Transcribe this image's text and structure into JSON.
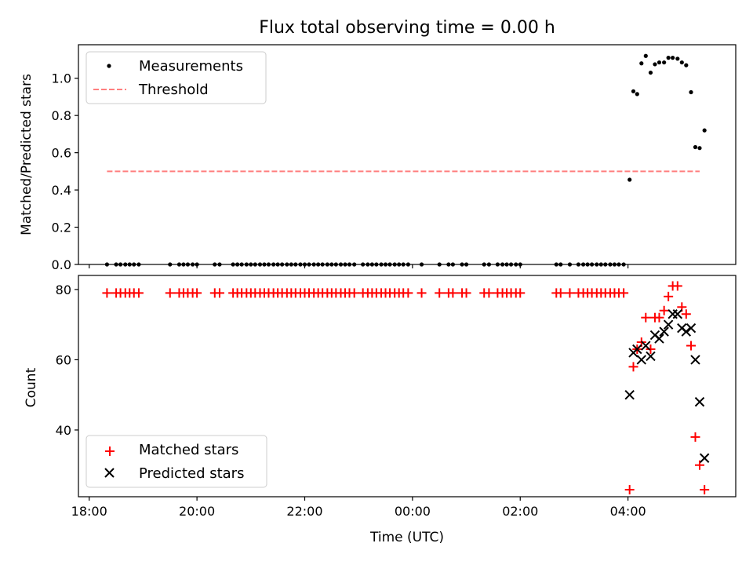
{
  "chart_data": [
    {
      "type": "scatter",
      "title": "Flux total observing time = 0.00 h",
      "ylabel": "Matched/Predicted stars",
      "xlabel": "",
      "xlim": [
        -0.2,
        12.0
      ],
      "ylim": [
        0.0,
        1.18
      ],
      "yticks": [
        0.0,
        0.2,
        0.4,
        0.6,
        0.8,
        1.0
      ],
      "ytick_labels": [
        "0.0",
        "0.2",
        "0.4",
        "0.6",
        "0.8",
        "1.0"
      ],
      "legend": "top-left",
      "series": [
        {
          "name": "Measurements",
          "color": "#000000",
          "marker": "dot",
          "x": [
            0.33,
            0.5,
            0.58,
            0.67,
            0.75,
            0.83,
            0.92,
            1.5,
            1.67,
            1.75,
            1.83,
            1.92,
            2.0,
            2.33,
            2.42,
            2.67,
            2.75,
            2.83,
            2.92,
            3.0,
            3.08,
            3.17,
            3.25,
            3.33,
            3.42,
            3.5,
            3.58,
            3.67,
            3.75,
            3.83,
            3.92,
            4.0,
            4.08,
            4.17,
            4.25,
            4.33,
            4.42,
            4.5,
            4.58,
            4.67,
            4.75,
            4.83,
            4.92,
            5.08,
            5.17,
            5.25,
            5.33,
            5.42,
            5.5,
            5.58,
            5.67,
            5.75,
            5.83,
            5.92,
            6.17,
            6.5,
            6.67,
            6.75,
            6.92,
            7.0,
            7.33,
            7.42,
            7.58,
            7.67,
            7.75,
            7.83,
            7.92,
            8.0,
            8.67,
            8.75,
            8.92,
            9.08,
            9.17,
            9.25,
            9.33,
            9.42,
            9.5,
            9.58,
            9.67,
            9.75,
            9.83,
            9.92,
            10.03,
            10.1,
            10.17,
            10.25,
            10.33,
            10.42,
            10.5,
            10.58,
            10.67,
            10.75,
            10.83,
            10.92,
            11.0,
            11.08,
            11.17,
            11.25,
            11.33,
            11.42
          ],
          "y": [
            0,
            0,
            0,
            0,
            0,
            0,
            0,
            0,
            0,
            0,
            0,
            0,
            0,
            0,
            0,
            0,
            0,
            0,
            0,
            0,
            0,
            0,
            0,
            0,
            0,
            0,
            0,
            0,
            0,
            0,
            0,
            0,
            0,
            0,
            0,
            0,
            0,
            0,
            0,
            0,
            0,
            0,
            0,
            0,
            0,
            0,
            0,
            0,
            0,
            0,
            0,
            0,
            0,
            0,
            0,
            0,
            0,
            0,
            0,
            0,
            0,
            0,
            0,
            0,
            0,
            0,
            0,
            0,
            0,
            0,
            0,
            0,
            0,
            0,
            0,
            0,
            0,
            0,
            0,
            0,
            0,
            0,
            0.455,
            0.93,
            0.915,
            1.08,
            1.12,
            1.03,
            1.075,
            1.085,
            1.085,
            1.11,
            1.11,
            1.105,
            1.085,
            1.07,
            0.925,
            0.63,
            0.625,
            0.72
          ]
        },
        {
          "name": "Threshold",
          "color": "#ff7f7f",
          "style": "dashed",
          "x": [
            0.33,
            11.33
          ],
          "y": [
            0.5,
            0.5
          ]
        }
      ]
    },
    {
      "type": "scatter",
      "title": "",
      "ylabel": "Count",
      "xlabel": "Time (UTC)",
      "xlim": [
        -0.2,
        12.0
      ],
      "ylim": [
        21,
        84
      ],
      "yticks": [
        40,
        60,
        80
      ],
      "ytick_labels": [
        "40",
        "60",
        "80"
      ],
      "xticks": [
        0,
        2,
        4,
        6,
        8,
        10
      ],
      "xtick_labels": [
        "18:00",
        "20:00",
        "22:00",
        "00:00",
        "02:00",
        "04:00"
      ],
      "legend": "bottom-left",
      "series": [
        {
          "name": "Matched stars",
          "color": "#ff0000",
          "marker": "plus",
          "x": [
            0.33,
            0.5,
            0.58,
            0.67,
            0.75,
            0.83,
            0.92,
            1.5,
            1.67,
            1.75,
            1.83,
            1.92,
            2.0,
            2.33,
            2.42,
            2.67,
            2.75,
            2.83,
            2.92,
            3.0,
            3.08,
            3.17,
            3.25,
            3.33,
            3.42,
            3.5,
            3.58,
            3.67,
            3.75,
            3.83,
            3.92,
            4.0,
            4.08,
            4.17,
            4.25,
            4.33,
            4.42,
            4.5,
            4.58,
            4.67,
            4.75,
            4.83,
            4.92,
            5.08,
            5.17,
            5.25,
            5.33,
            5.42,
            5.5,
            5.58,
            5.67,
            5.75,
            5.83,
            5.92,
            6.17,
            6.5,
            6.67,
            6.75,
            6.92,
            7.0,
            7.33,
            7.42,
            7.58,
            7.67,
            7.75,
            7.83,
            7.92,
            8.0,
            8.67,
            8.75,
            8.92,
            9.08,
            9.17,
            9.25,
            9.33,
            9.42,
            9.5,
            9.58,
            9.67,
            9.75,
            9.83,
            9.92,
            10.03,
            10.1,
            10.17,
            10.25,
            10.33,
            10.42,
            10.5,
            10.58,
            10.67,
            10.75,
            10.83,
            10.92,
            11.0,
            11.08,
            11.17,
            11.25,
            11.33,
            11.42
          ],
          "y": [
            79,
            79,
            79,
            79,
            79,
            79,
            79,
            79,
            79,
            79,
            79,
            79,
            79,
            79,
            79,
            79,
            79,
            79,
            79,
            79,
            79,
            79,
            79,
            79,
            79,
            79,
            79,
            79,
            79,
            79,
            79,
            79,
            79,
            79,
            79,
            79,
            79,
            79,
            79,
            79,
            79,
            79,
            79,
            79,
            79,
            79,
            79,
            79,
            79,
            79,
            79,
            79,
            79,
            79,
            79,
            79,
            79,
            79,
            79,
            79,
            79,
            79,
            79,
            79,
            79,
            79,
            79,
            79,
            79,
            79,
            79,
            79,
            79,
            79,
            79,
            79,
            79,
            79,
            79,
            79,
            79,
            79,
            23,
            58,
            63,
            65,
            72,
            63,
            72,
            72,
            74,
            78,
            81,
            81,
            75,
            73,
            64,
            38,
            30,
            23
          ]
        },
        {
          "name": "Predicted stars",
          "color": "#000000",
          "marker": "x",
          "x": [
            10.03,
            10.1,
            10.17,
            10.25,
            10.33,
            10.42,
            10.5,
            10.58,
            10.67,
            10.75,
            10.83,
            10.92,
            11.0,
            11.08,
            11.17,
            11.25,
            11.33,
            11.42
          ],
          "y": [
            50,
            62,
            63,
            60,
            64,
            61,
            67,
            66,
            68,
            70,
            73,
            73,
            69,
            68,
            69,
            60,
            48,
            32
          ]
        }
      ]
    }
  ]
}
